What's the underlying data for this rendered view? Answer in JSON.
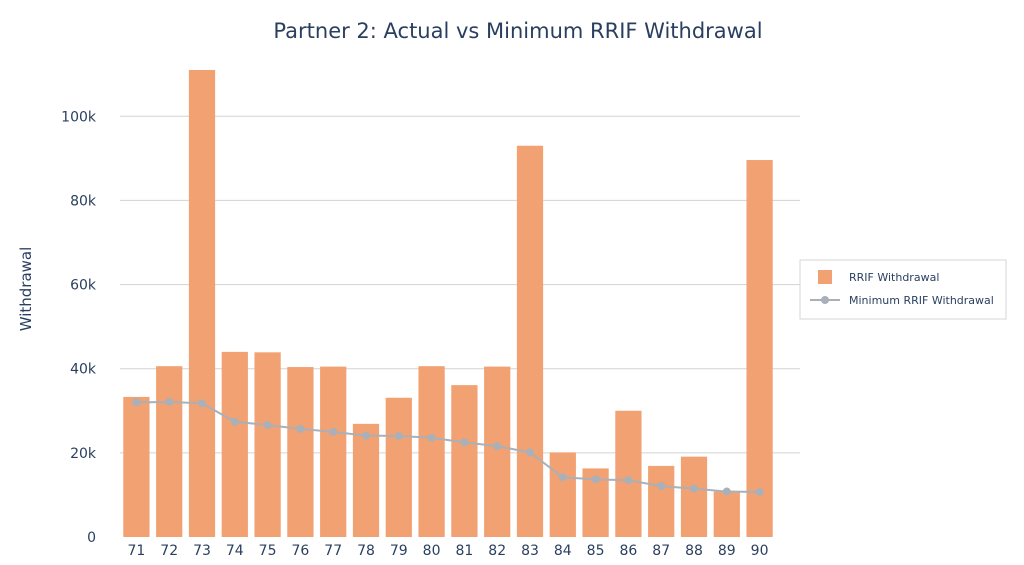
{
  "chart_data": {
    "type": "bar",
    "title": "Partner 2: Actual vs Minimum RRIF Withdrawal",
    "xlabel": "",
    "ylabel": "Withdrawal",
    "ylim": [
      0,
      111000
    ],
    "yticks": [
      0,
      20000,
      40000,
      60000,
      80000,
      100000
    ],
    "ytick_labels": [
      "0",
      "20k",
      "40k",
      "60k",
      "80k",
      "100k"
    ],
    "categories": [
      "71",
      "72",
      "73",
      "74",
      "75",
      "76",
      "77",
      "78",
      "79",
      "80",
      "81",
      "82",
      "83",
      "84",
      "85",
      "86",
      "87",
      "88",
      "89",
      "90"
    ],
    "grid": true,
    "legend_position": "right",
    "series": [
      {
        "name": "RRIF Withdrawal",
        "type": "bar",
        "color": "#f2a172",
        "values": [
          33300,
          40600,
          111000,
          44000,
          43900,
          40400,
          40500,
          26900,
          33100,
          40600,
          36100,
          40500,
          93000,
          20100,
          16300,
          30000,
          16900,
          19100,
          10800,
          89600
        ]
      },
      {
        "name": "Minimum RRIF Withdrawal",
        "type": "line",
        "color": "#aab0b8",
        "values": [
          32000,
          32100,
          31800,
          27400,
          26600,
          25700,
          25000,
          24100,
          24000,
          23600,
          22500,
          21600,
          20100,
          14200,
          13700,
          13500,
          12100,
          11500,
          10800,
          10700
        ]
      }
    ]
  }
}
